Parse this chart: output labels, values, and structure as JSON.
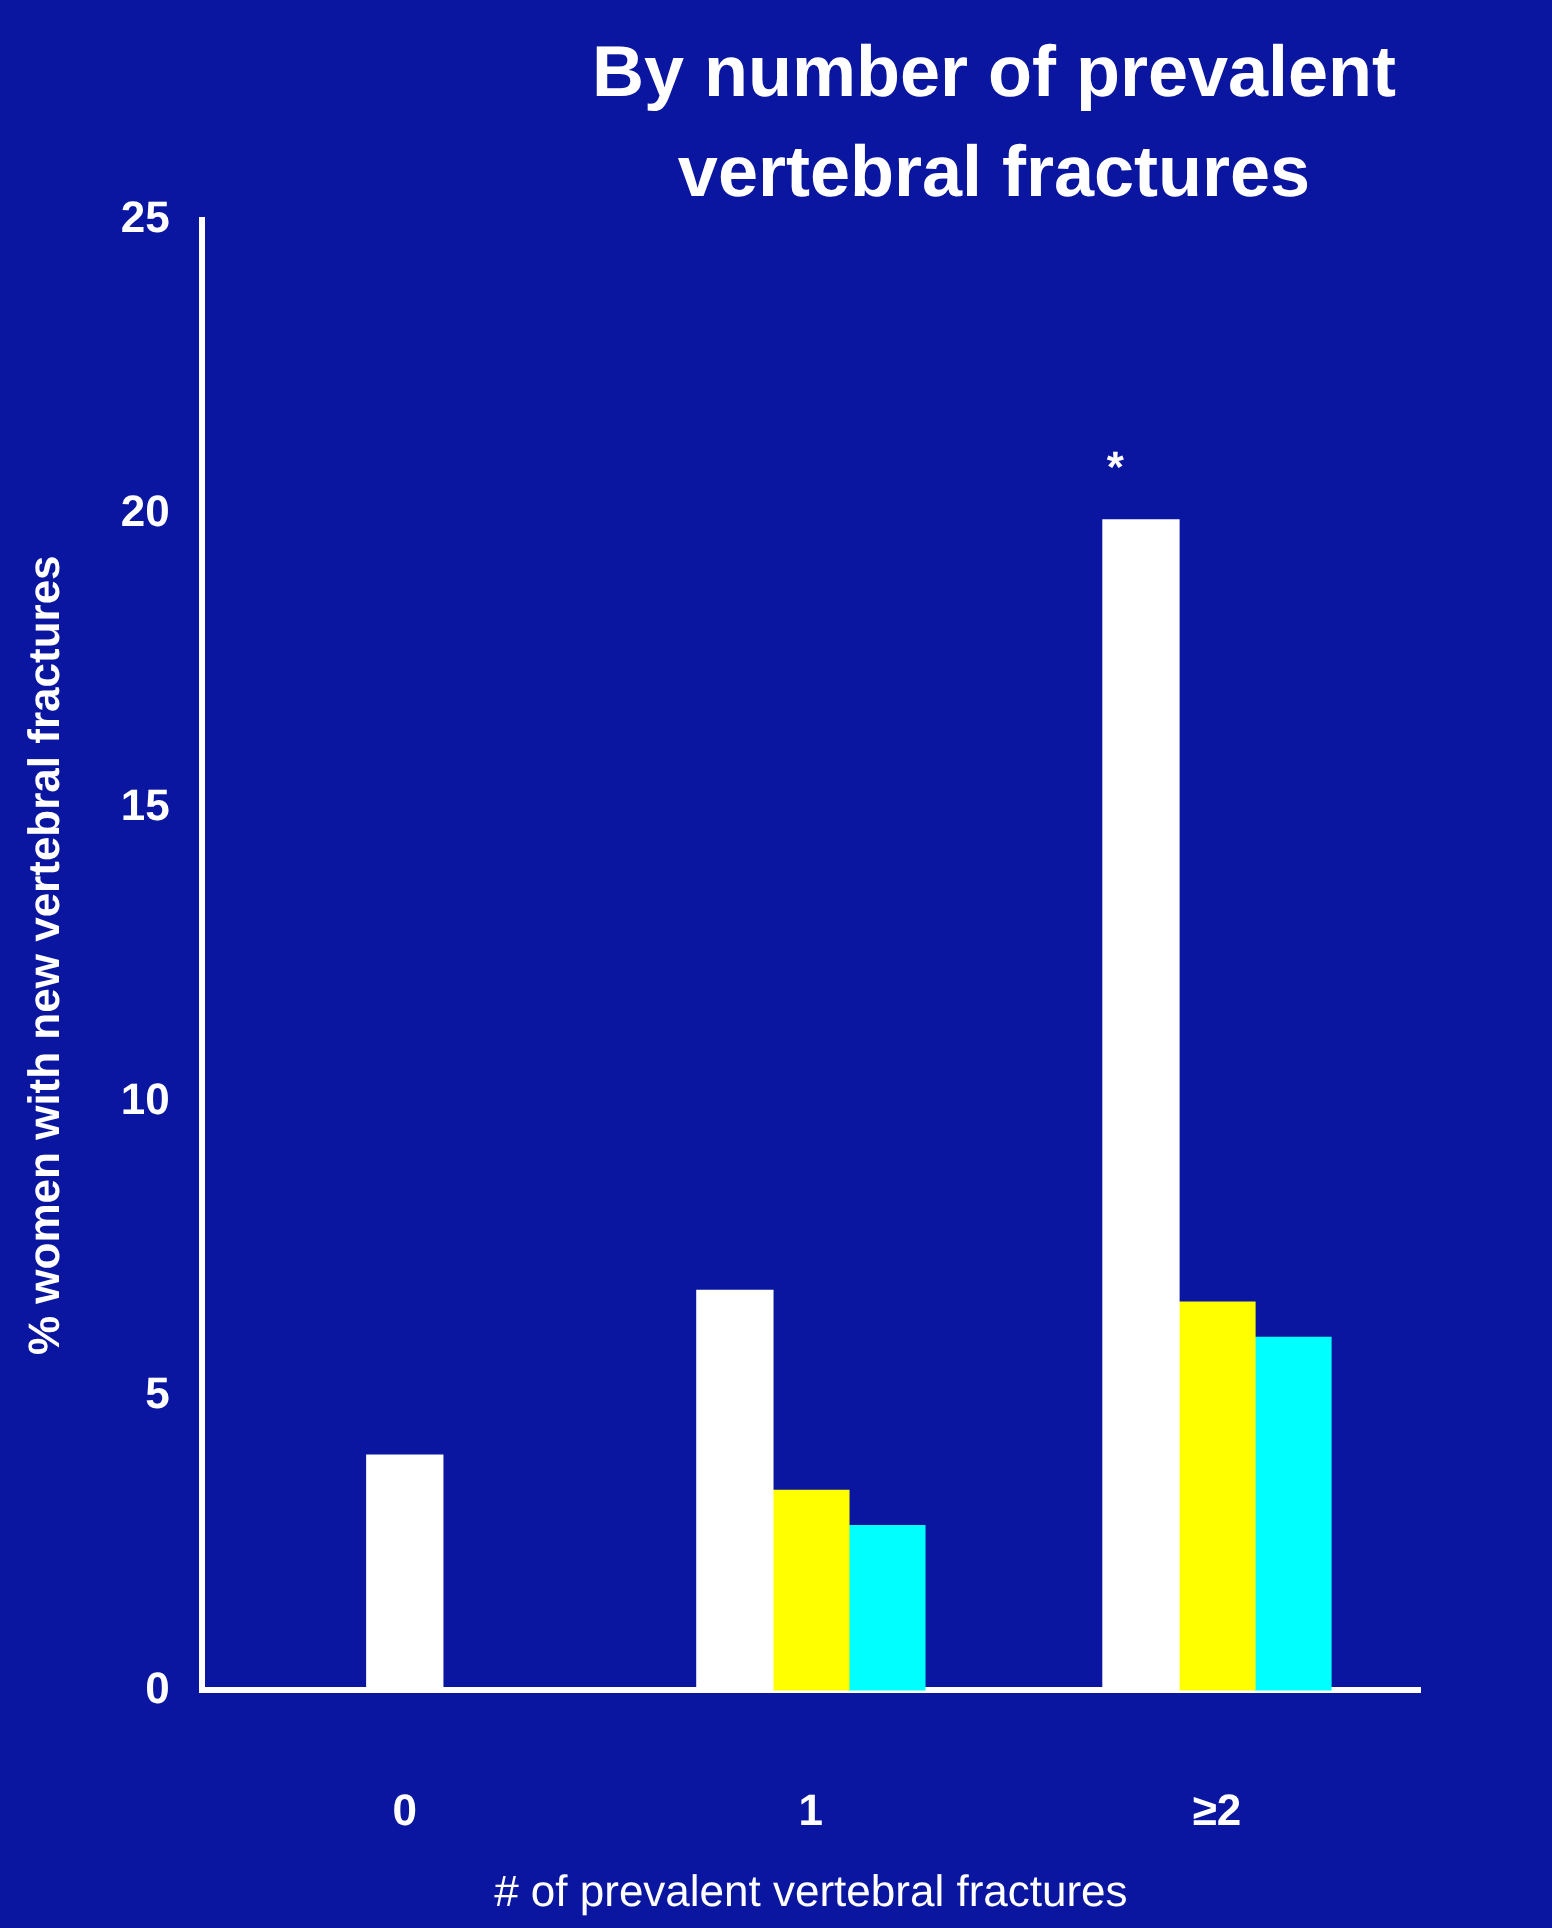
{
  "chart_data": {
    "type": "bar",
    "title": "By number of prevalent vertebral fractures",
    "xlabel": "# of prevalent vertebral fractures",
    "ylabel": "% women with new vertebral fractures",
    "categories": [
      "0",
      "1",
      "≥2"
    ],
    "series": [
      {
        "color": "#ffffff",
        "values": [
          4.0,
          6.8,
          19.9
        ]
      },
      {
        "color": "#ffff00",
        "values": [
          null,
          3.4,
          6.6
        ]
      },
      {
        "color": "#00ffff",
        "values": [
          null,
          2.8,
          6.0
        ]
      }
    ],
    "ylim": [
      0,
      25
    ],
    "yticks": [
      0,
      5,
      10,
      15,
      20,
      25
    ],
    "grid": false,
    "legend": false,
    "annotations": [
      "*"
    ]
  }
}
